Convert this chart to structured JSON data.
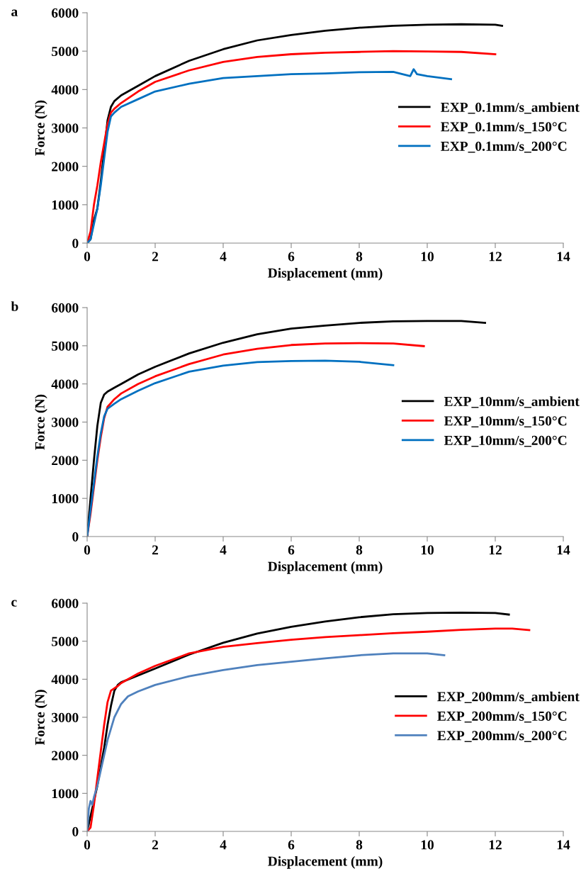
{
  "chart_data": [
    {
      "type": "line",
      "title": "a",
      "xlabel": "Displacement (mm)",
      "ylabel": "Force (N)",
      "xlim": [
        0,
        14
      ],
      "xticks": [
        0,
        2,
        4,
        6,
        8,
        10,
        12,
        14
      ],
      "ylim": [
        0,
        6000
      ],
      "yticks": [
        0,
        1000,
        2000,
        3000,
        4000,
        5000,
        6000
      ],
      "grid": false,
      "legend": "right",
      "marker": "none",
      "line_style": "solid",
      "series": [
        {
          "name": "EXP_0.1mm/s_ambient",
          "color": "#000000",
          "x": [
            0,
            0.1,
            0.2,
            0.3,
            0.4,
            0.5,
            0.6,
            0.7,
            0.8,
            1.0,
            1.5,
            2,
            3,
            4,
            5,
            6,
            7,
            8,
            9,
            10,
            11,
            12,
            12.2
          ],
          "values": [
            0,
            100,
            600,
            900,
            1600,
            2400,
            3200,
            3550,
            3700,
            3850,
            4100,
            4350,
            4750,
            5050,
            5280,
            5420,
            5530,
            5610,
            5660,
            5690,
            5700,
            5690,
            5660
          ]
        },
        {
          "name": "EXP_0.1mm/s_150°C",
          "color": "#ff0000",
          "x": [
            0,
            0.1,
            0.2,
            0.3,
            0.4,
            0.5,
            0.6,
            0.7,
            0.8,
            1.0,
            1.5,
            2,
            3,
            4,
            5,
            6,
            7,
            8,
            9,
            10,
            11,
            12
          ],
          "values": [
            0,
            300,
            1000,
            1500,
            2100,
            2600,
            3100,
            3400,
            3500,
            3650,
            3950,
            4200,
            4500,
            4720,
            4850,
            4920,
            4960,
            4980,
            5000,
            4990,
            4980,
            4920
          ]
        },
        {
          "name": "EXP_0.1mm/s_200°C",
          "color": "#0070c0",
          "x": [
            0,
            0.1,
            0.2,
            0.3,
            0.4,
            0.5,
            0.6,
            0.7,
            0.8,
            1.0,
            1.5,
            2,
            3,
            4,
            5,
            6,
            7,
            8,
            9,
            9.5,
            9.6,
            9.7,
            10,
            10.7
          ],
          "values": [
            0,
            100,
            500,
            900,
            1500,
            2200,
            2900,
            3300,
            3400,
            3550,
            3750,
            3950,
            4150,
            4300,
            4350,
            4400,
            4420,
            4450,
            4460,
            4350,
            4530,
            4400,
            4350,
            4270
          ]
        }
      ]
    },
    {
      "type": "line",
      "title": "b",
      "xlabel": "Displacement (mm)",
      "ylabel": "Force (N)",
      "xlim": [
        0,
        14
      ],
      "xticks": [
        0,
        2,
        4,
        6,
        8,
        10,
        12,
        14
      ],
      "ylim": [
        0,
        6000
      ],
      "yticks": [
        0,
        1000,
        2000,
        3000,
        4000,
        5000,
        6000
      ],
      "grid": false,
      "legend": "right",
      "marker": "none",
      "line_style": "solid",
      "series": [
        {
          "name": "EXP_10mm/s_ambient",
          "color": "#000000",
          "x": [
            0,
            0.1,
            0.2,
            0.3,
            0.4,
            0.5,
            0.6,
            0.8,
            1,
            1.5,
            2,
            3,
            4,
            5,
            6,
            7,
            8,
            9,
            10,
            11,
            11.7
          ],
          "values": [
            0,
            1000,
            2000,
            2900,
            3500,
            3720,
            3800,
            3900,
            4000,
            4250,
            4450,
            4800,
            5080,
            5300,
            5450,
            5530,
            5600,
            5640,
            5650,
            5650,
            5600
          ]
        },
        {
          "name": "EXP_10mm/s_150°C",
          "color": "#ff0000",
          "x": [
            0,
            0.1,
            0.2,
            0.3,
            0.4,
            0.5,
            0.6,
            0.8,
            1,
            1.5,
            2,
            3,
            4,
            5,
            6,
            7,
            8,
            9,
            9.9
          ],
          "values": [
            0,
            600,
            1300,
            2000,
            2600,
            3100,
            3400,
            3600,
            3750,
            4000,
            4200,
            4520,
            4770,
            4920,
            5020,
            5060,
            5070,
            5060,
            4990
          ]
        },
        {
          "name": "EXP_10mm/s_200°C",
          "color": "#0070c0",
          "x": [
            0,
            0.1,
            0.2,
            0.3,
            0.4,
            0.5,
            0.6,
            0.8,
            1,
            1.5,
            2,
            3,
            4,
            5,
            6,
            7,
            8,
            9
          ],
          "values": [
            0,
            700,
            1400,
            2100,
            2700,
            3150,
            3350,
            3480,
            3600,
            3820,
            4020,
            4320,
            4480,
            4570,
            4600,
            4610,
            4580,
            4490
          ]
        }
      ]
    },
    {
      "type": "line",
      "title": "c",
      "xlabel": "Displacement (mm)",
      "ylabel": "Force (N)",
      "xlim": [
        0,
        14
      ],
      "xticks": [
        0,
        2,
        4,
        6,
        8,
        10,
        12,
        14
      ],
      "ylim": [
        0,
        6000
      ],
      "yticks": [
        0,
        1000,
        2000,
        3000,
        4000,
        5000,
        6000
      ],
      "grid": false,
      "legend": "right",
      "marker": "none",
      "line_style": "solid",
      "series": [
        {
          "name": "EXP_200mm/s_ambient",
          "color": "#000000",
          "x": [
            0,
            0.1,
            0.2,
            0.3,
            0.4,
            0.5,
            0.6,
            0.7,
            0.8,
            0.9,
            1,
            1.5,
            2,
            3,
            4,
            5,
            6,
            7,
            8,
            9,
            10,
            11,
            12,
            12.4
          ],
          "values": [
            0,
            400,
            800,
            1200,
            1700,
            2200,
            2800,
            3300,
            3700,
            3850,
            3920,
            4100,
            4280,
            4650,
            4960,
            5200,
            5380,
            5520,
            5630,
            5710,
            5740,
            5750,
            5740,
            5700
          ]
        },
        {
          "name": "EXP_200mm/s_150°C",
          "color": "#ff0000",
          "x": [
            0,
            0.1,
            0.2,
            0.3,
            0.4,
            0.5,
            0.6,
            0.7,
            0.8,
            0.9,
            1,
            1.5,
            2,
            3,
            4,
            5,
            6,
            7,
            8,
            9,
            10,
            11,
            12,
            12.5,
            13
          ],
          "values": [
            0,
            100,
            700,
            1400,
            2100,
            2800,
            3400,
            3700,
            3760,
            3820,
            3900,
            4150,
            4350,
            4680,
            4850,
            4950,
            5040,
            5110,
            5160,
            5210,
            5250,
            5300,
            5330,
            5330,
            5290
          ]
        },
        {
          "name": "EXP_200mm/s_200°C",
          "color": "#4f81bd",
          "x": [
            0,
            0.05,
            0.1,
            0.15,
            0.2,
            0.3,
            0.4,
            0.5,
            0.6,
            0.7,
            0.8,
            1,
            1.2,
            1.5,
            2,
            3,
            4,
            5,
            6,
            7,
            8,
            9,
            9.5,
            10,
            10.5
          ],
          "values": [
            0,
            600,
            800,
            700,
            900,
            1200,
            1600,
            2000,
            2400,
            2700,
            3000,
            3350,
            3550,
            3680,
            3850,
            4080,
            4240,
            4370,
            4460,
            4550,
            4630,
            4680,
            4680,
            4680,
            4630
          ]
        }
      ]
    }
  ]
}
